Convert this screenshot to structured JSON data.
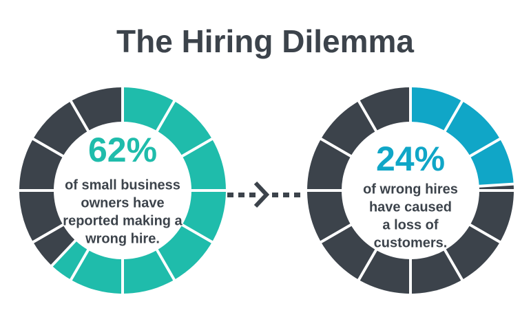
{
  "title": "The Hiring Dilemma",
  "chart_data": [
    {
      "type": "donut",
      "values": [
        62
      ],
      "value_labels": [
        "62%"
      ],
      "color": "#1fbcab",
      "rest_color": "#3c434b",
      "caption": [
        "of small business",
        "owners have",
        "reported making a",
        "wrong hire."
      ]
    },
    {
      "type": "donut",
      "values": [
        24
      ],
      "value_labels": [
        "24%"
      ],
      "color": "#10a6c7",
      "rest_color": "#3c434b",
      "caption": [
        "of wrong hires",
        "have caused",
        "a loss of",
        "customers."
      ]
    }
  ]
}
